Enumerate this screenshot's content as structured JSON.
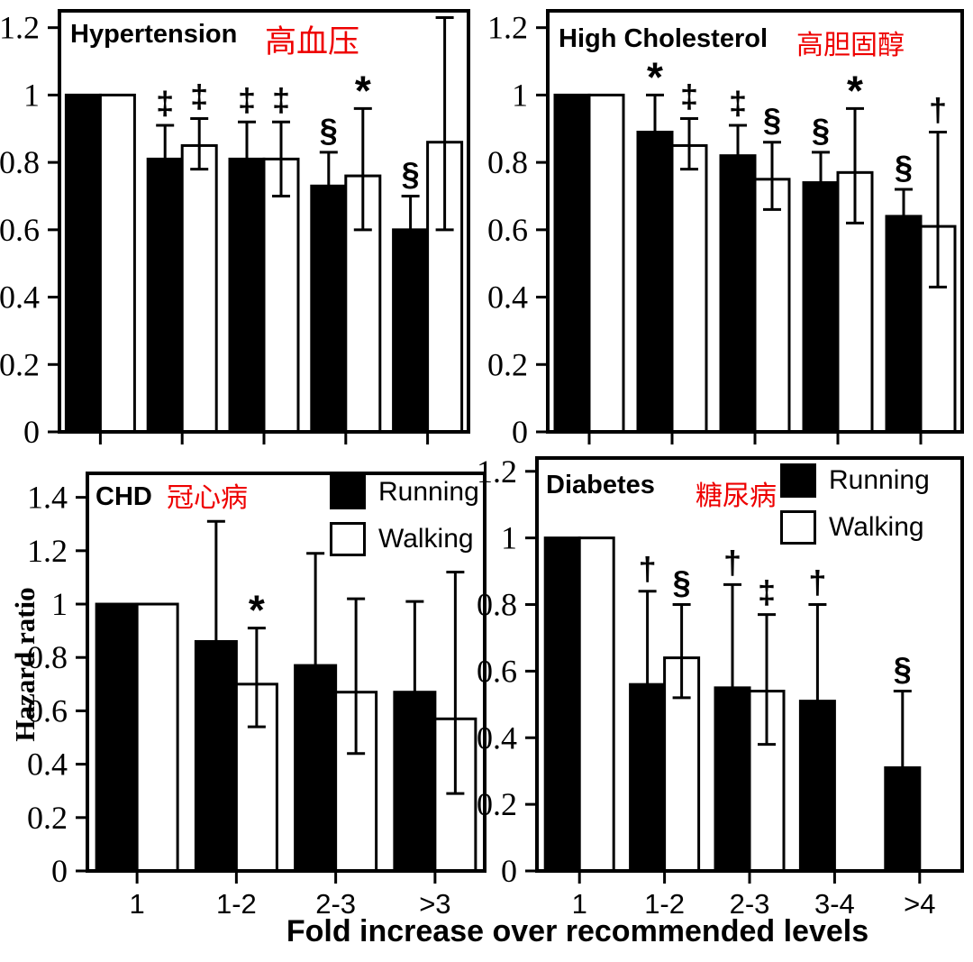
{
  "figure": {
    "bg": "#ffffff",
    "accent_red": "#ee0000",
    "bar_black": "#000000",
    "bar_white": "#ffffff",
    "ylabel": "Hazard ratio",
    "xlabel": "Fold increase over recommended levels",
    "legend": {
      "running": "Running",
      "walking": "Walking"
    }
  },
  "chart_data": [
    {
      "key": "hypertension",
      "type": "bar",
      "title": "Hypertension",
      "title_cn": "高血压",
      "ylim": [
        0,
        1.25
      ],
      "ytick_values": [
        0,
        0.2,
        0.4,
        0.6,
        0.8,
        1,
        1.2
      ],
      "ytick_labels": [
        "0",
        "0.2",
        "0.4",
        "0.6",
        "0.8",
        "1",
        "1.2"
      ],
      "categories": [
        "1",
        "1-2",
        "2-3",
        "3-4",
        ">4"
      ],
      "x_labels_shown": false,
      "legend_shown": false,
      "series": [
        {
          "name": "Running",
          "fill": "#000000",
          "values": [
            1.0,
            0.81,
            0.81,
            0.73,
            0.6
          ],
          "err_hi": [
            null,
            0.91,
            0.92,
            0.83,
            0.7
          ],
          "err_lo": [
            null,
            null,
            null,
            null,
            null
          ],
          "markers": [
            "",
            "‡",
            "‡",
            "§",
            "§"
          ]
        },
        {
          "name": "Walking",
          "fill": "#ffffff",
          "values": [
            1.0,
            0.85,
            0.81,
            0.76,
            0.86
          ],
          "err_hi": [
            null,
            0.93,
            0.92,
            0.96,
            1.23
          ],
          "err_lo": [
            null,
            0.78,
            0.7,
            0.6,
            0.6
          ],
          "markers": [
            "",
            "‡",
            "‡",
            "*",
            ""
          ]
        }
      ]
    },
    {
      "key": "high_cholesterol",
      "type": "bar",
      "title": "High Cholesterol",
      "title_cn": "高胆固醇",
      "ylim": [
        0,
        1.25
      ],
      "ytick_values": [
        0,
        0.2,
        0.4,
        0.6,
        0.8,
        1,
        1.2
      ],
      "ytick_labels": [
        "0",
        "0.2",
        "0.4",
        "0.6",
        "0.8",
        "1",
        "1.2"
      ],
      "categories": [
        "1",
        "1-2",
        "2-3",
        "3-4",
        ">4"
      ],
      "x_labels_shown": false,
      "legend_shown": false,
      "series": [
        {
          "name": "Running",
          "fill": "#000000",
          "values": [
            1.0,
            0.89,
            0.82,
            0.74,
            0.64
          ],
          "err_hi": [
            null,
            1.0,
            0.91,
            0.83,
            0.72
          ],
          "err_lo": [
            null,
            null,
            null,
            null,
            null
          ],
          "markers": [
            "",
            "*",
            "‡",
            "§",
            "§"
          ]
        },
        {
          "name": "Walking",
          "fill": "#ffffff",
          "values": [
            1.0,
            0.85,
            0.75,
            0.77,
            0.61
          ],
          "err_hi": [
            null,
            0.93,
            0.86,
            0.96,
            0.89
          ],
          "err_lo": [
            null,
            0.78,
            0.66,
            0.62,
            0.43
          ],
          "markers": [
            "",
            "‡",
            "§",
            "*",
            "†"
          ]
        }
      ]
    },
    {
      "key": "chd",
      "type": "bar",
      "title": "CHD",
      "title_cn": "冠心病",
      "ylim": [
        0,
        1.49
      ],
      "ytick_values": [
        0,
        0.2,
        0.4,
        0.6,
        0.8,
        1,
        1.2,
        1.4
      ],
      "ytick_labels": [
        "0",
        "0.2",
        "0.4",
        "0.6",
        "0.8",
        "1",
        "1.2",
        "1.4"
      ],
      "categories": [
        "1",
        "1-2",
        "2-3",
        ">3"
      ],
      "x_labels_shown": true,
      "legend_shown": true,
      "series": [
        {
          "name": "Running",
          "fill": "#000000",
          "values": [
            1.0,
            0.86,
            0.77,
            0.67
          ],
          "err_hi": [
            null,
            1.31,
            1.19,
            1.01
          ],
          "err_lo": [
            null,
            null,
            null,
            null
          ],
          "markers": [
            "",
            "",
            "",
            ""
          ]
        },
        {
          "name": "Walking",
          "fill": "#ffffff",
          "values": [
            1.0,
            0.7,
            0.67,
            0.57
          ],
          "err_hi": [
            null,
            0.91,
            1.02,
            1.12
          ],
          "err_lo": [
            null,
            0.54,
            0.44,
            0.29
          ],
          "markers": [
            "",
            "*",
            "",
            ""
          ]
        }
      ]
    },
    {
      "key": "diabetes",
      "type": "bar",
      "title": "Diabetes",
      "title_cn": "糖尿病",
      "ylim": [
        0,
        1.24
      ],
      "ytick_values": [
        0,
        0.2,
        0.4,
        0.6,
        0.8,
        1,
        1.2
      ],
      "ytick_labels": [
        "0",
        "0.2",
        "0.4",
        "0.6",
        "0.8",
        "1",
        "1.2"
      ],
      "categories": [
        "1",
        "1-2",
        "2-3",
        "3-4",
        ">4"
      ],
      "x_labels_shown": true,
      "legend_shown": true,
      "series": [
        {
          "name": "Running",
          "fill": "#000000",
          "values": [
            1.0,
            0.56,
            0.55,
            0.51,
            0.31
          ],
          "err_hi": [
            null,
            0.84,
            0.86,
            0.8,
            0.54
          ],
          "err_lo": [
            null,
            null,
            null,
            null,
            null
          ],
          "markers": [
            "",
            "†",
            "†",
            "†",
            "§"
          ]
        },
        {
          "name": "Walking",
          "fill": "#ffffff",
          "values": [
            1.0,
            0.64,
            0.54,
            null,
            null
          ],
          "err_hi": [
            null,
            0.8,
            0.77,
            null,
            null
          ],
          "err_lo": [
            null,
            0.52,
            0.38,
            null,
            null
          ],
          "markers": [
            "",
            "§",
            "‡",
            "",
            ""
          ]
        }
      ]
    }
  ]
}
